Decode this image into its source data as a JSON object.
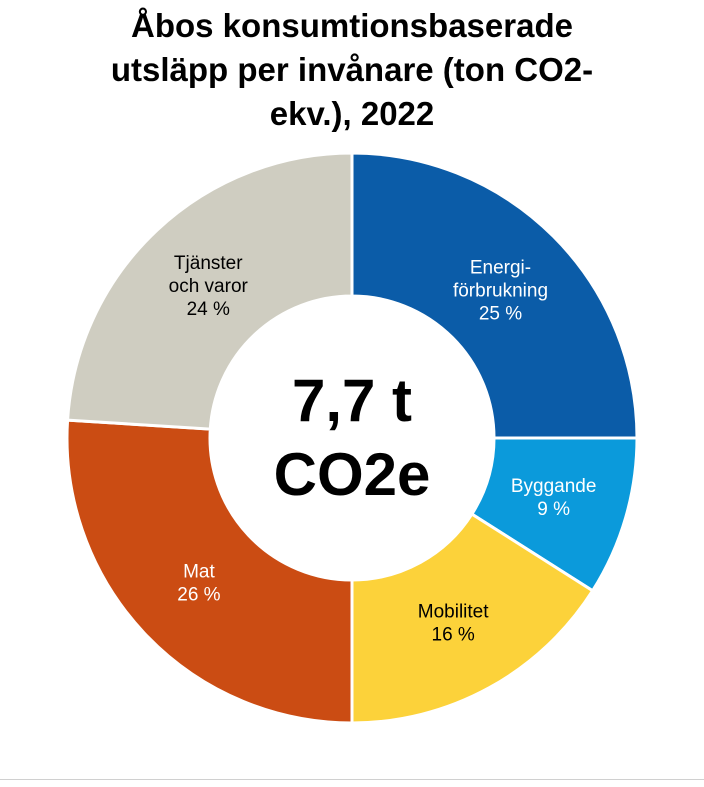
{
  "chart_data": {
    "type": "pie",
    "title_lines": [
      "Åbos konsumtionsbaserade",
      "utsläpp per invånare (ton CO2-",
      "ekv.), 2022"
    ],
    "center_label_lines": [
      "7,7 t",
      "CO2e"
    ],
    "slices": [
      {
        "label_lines": [
          "Energi-",
          "förbrukning"
        ],
        "value": 25,
        "value_label": "25 %",
        "color": "#0B5CA8",
        "text_color": "#ffffff"
      },
      {
        "label_lines": [
          "Byggande"
        ],
        "value": 9,
        "value_label": "9 %",
        "color": "#0B9ADB",
        "text_color": "#ffffff"
      },
      {
        "label_lines": [
          "Mobilitet"
        ],
        "value": 16,
        "value_label": "16 %",
        "color": "#FCD23A",
        "text_color": "#000000"
      },
      {
        "label_lines": [
          "Mat"
        ],
        "value": 26,
        "value_label": "26 %",
        "color": "#CB4C13",
        "text_color": "#ffffff"
      },
      {
        "label_lines": [
          "Tjänster",
          "och varor"
        ],
        "value": 24,
        "value_label": "24 %",
        "color": "#CFCDC1",
        "text_color": "#000000"
      }
    ]
  }
}
